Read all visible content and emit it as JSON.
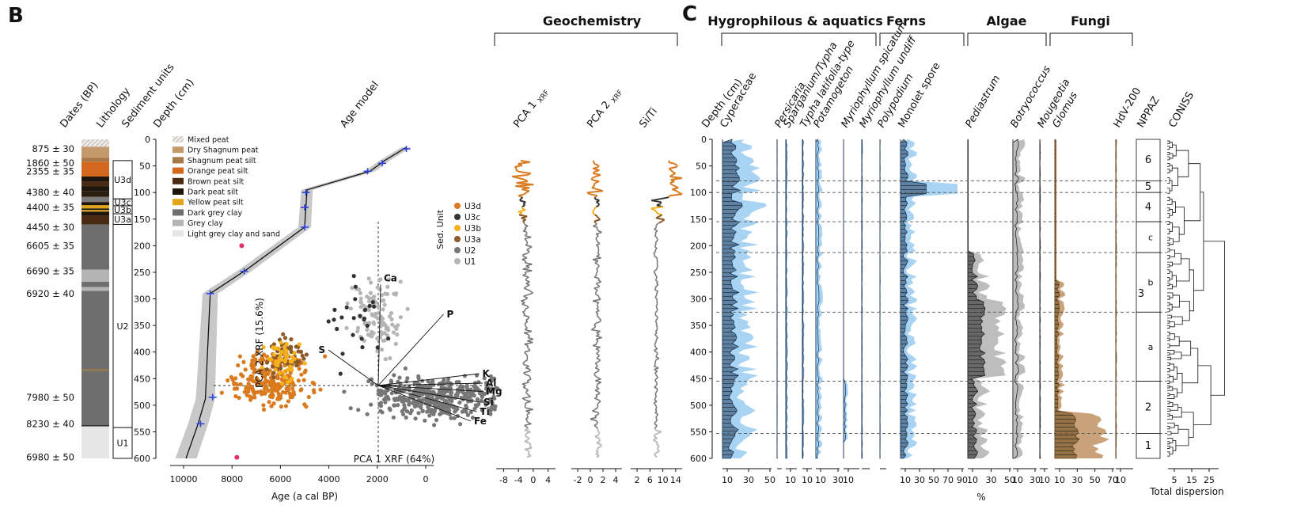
{
  "panel_b_letter": "B",
  "panel_c_letter": "C",
  "geochem_title": "Geochemistry",
  "column_headers": {
    "dates": "Dates (BP)",
    "lithology": "Lithology",
    "units": "Sediment units",
    "depth": "Depth (cm)",
    "age_model": "Age model",
    "pca1": "PCA 1",
    "pca2": "PCA 2",
    "xrf": "XRF",
    "siti": "Si/Ti",
    "depth_c": "Depth (cm)"
  },
  "dates": [
    {
      "label": "875 ± 30",
      "depth": 18,
      "grey": false
    },
    {
      "label": "1860 ± 50",
      "depth": 45,
      "grey": false
    },
    {
      "label": "2355 ± 35",
      "depth": 60,
      "grey": false
    },
    {
      "label": "4380 ± 40",
      "depth": 100,
      "grey": false
    },
    {
      "label": "4400 ± 35",
      "depth": 128,
      "grey": false
    },
    {
      "label": "4450 ± 30",
      "depth": 165,
      "grey": false
    },
    {
      "label": "6605 ± 35",
      "depth": 200,
      "grey": true
    },
    {
      "label": "6690 ± 35",
      "depth": 248,
      "grey": false
    },
    {
      "label": "6920 ± 40",
      "depth": 290,
      "grey": false
    },
    {
      "label": "7980 ± 50",
      "depth": 485,
      "grey": false
    },
    {
      "label": "8230 ± 40",
      "depth": 535,
      "grey": false
    },
    {
      "label": "6980 ± 50",
      "depth": 598,
      "grey": true
    }
  ],
  "units": [
    {
      "label": "U3d",
      "top": 40,
      "bottom": 112
    },
    {
      "label": "U3c",
      "top": 112,
      "bottom": 125
    },
    {
      "label": "U3b",
      "top": 125,
      "bottom": 140
    },
    {
      "label": "U3a",
      "top": 140,
      "bottom": 160
    },
    {
      "label": "U2",
      "top": 160,
      "bottom": 542
    },
    {
      "label": "U1",
      "top": 542,
      "bottom": 600
    }
  ],
  "litho_legend": [
    {
      "label": "Mixed peat",
      "color": "#e8e4e0",
      "hatch": true
    },
    {
      "label": "Dry Shagnum peat",
      "color": "#c49a6c"
    },
    {
      "label": "Shagnum peat silt",
      "color": "#a5784a"
    },
    {
      "label": "Orange peat silt",
      "color": "#d2691e"
    },
    {
      "label": "Brown peat silt",
      "color": "#4a2a12"
    },
    {
      "label": "Dark peat silt",
      "color": "#1e150d"
    },
    {
      "label": "Yellow peat silt",
      "color": "#e3a61a"
    },
    {
      "label": "Dark grey clay",
      "color": "#6e6e6e"
    },
    {
      "label": "Grey clay",
      "color": "#b4b4b4"
    },
    {
      "label": "Light grey clay and sand",
      "color": "#e6e6e6"
    }
  ],
  "litho_layers": [
    {
      "top": 0,
      "bottom": 14,
      "color": "#e8e4e0"
    },
    {
      "top": 14,
      "bottom": 35,
      "color": "#c49a6c"
    },
    {
      "top": 35,
      "bottom": 42,
      "color": "#a5784a"
    },
    {
      "top": 42,
      "bottom": 70,
      "color": "#d2691e"
    },
    {
      "top": 70,
      "bottom": 80,
      "color": "#1e150d"
    },
    {
      "top": 80,
      "bottom": 88,
      "color": "#4a2a12"
    },
    {
      "top": 88,
      "bottom": 98,
      "color": "#1e150d"
    },
    {
      "top": 98,
      "bottom": 108,
      "color": "#2b1d10"
    },
    {
      "top": 108,
      "bottom": 118,
      "color": "#7a7a7a"
    },
    {
      "top": 118,
      "bottom": 124,
      "color": "#1e150d"
    },
    {
      "top": 124,
      "bottom": 130,
      "color": "#e3a61a"
    },
    {
      "top": 130,
      "bottom": 133,
      "color": "#1e150d"
    },
    {
      "top": 133,
      "bottom": 136,
      "color": "#e3a61a"
    },
    {
      "top": 136,
      "bottom": 143,
      "color": "#1e150d"
    },
    {
      "top": 143,
      "bottom": 160,
      "color": "#4a2a12"
    },
    {
      "top": 160,
      "bottom": 245,
      "color": "#6e6e6e"
    },
    {
      "top": 245,
      "bottom": 268,
      "color": "#b4b4b4"
    },
    {
      "top": 268,
      "bottom": 278,
      "color": "#6e6e6e"
    },
    {
      "top": 278,
      "bottom": 285,
      "color": "#b4b4b4"
    },
    {
      "top": 285,
      "bottom": 432,
      "color": "#6e6e6e"
    },
    {
      "top": 432,
      "bottom": 436,
      "color": "#8b6f47"
    },
    {
      "top": 436,
      "bottom": 537,
      "color": "#6e6e6e"
    },
    {
      "top": 537,
      "bottom": 540,
      "color": "#333333"
    },
    {
      "top": 540,
      "bottom": 600,
      "color": "#e6e6e6"
    }
  ],
  "chart_data": [
    {
      "type": "line",
      "name": "age_model",
      "xlabel": "Age (a cal BP)",
      "ylabel": "Depth (cm)",
      "xlim": [
        10000,
        0
      ],
      "ylim": [
        600,
        0
      ],
      "x_ticks": [
        10000,
        8000,
        6000,
        4000,
        2000,
        0
      ],
      "y_ticks": [
        0,
        50,
        100,
        150,
        200,
        250,
        300,
        350,
        400,
        450,
        500,
        550,
        600
      ],
      "median": [
        [
          800,
          15
        ],
        [
          1700,
          40
        ],
        [
          2300,
          60
        ],
        [
          2450,
          62
        ],
        [
          4900,
          95
        ],
        [
          4950,
          128
        ],
        [
          5000,
          165
        ],
        [
          7400,
          245
        ],
        [
          8900,
          290
        ],
        [
          9100,
          488
        ],
        [
          9400,
          535
        ],
        [
          9900,
          600
        ]
      ],
      "dates_blue": [
        [
          800,
          18
        ],
        [
          1800,
          45
        ],
        [
          2400,
          60
        ],
        [
          4950,
          100
        ],
        [
          5000,
          128
        ],
        [
          5000,
          165
        ],
        [
          7500,
          248
        ],
        [
          8900,
          290
        ],
        [
          8800,
          485
        ],
        [
          9300,
          535
        ]
      ],
      "dates_rejected": [
        [
          7600,
          200
        ],
        [
          7800,
          598
        ]
      ]
    },
    {
      "type": "scatter",
      "name": "xrf_pca_biplot",
      "xlabel": "PCA 1",
      "xlabel_sub": "XRF",
      "xlabel_pct": "(64%)",
      "ylabel": "PCA 2",
      "ylabel_sub": "XRF",
      "ylabel_pct": "(15.6%)",
      "legend_title": "Sed. Unit",
      "series": [
        {
          "name": "U3d",
          "color": "#d97a1e"
        },
        {
          "name": "U3c",
          "color": "#333333"
        },
        {
          "name": "U3b",
          "color": "#f4b11c"
        },
        {
          "name": "U3a",
          "color": "#8b5a2b"
        },
        {
          "name": "U2",
          "color": "#777777"
        },
        {
          "name": "U1",
          "color": "#b5b5b5"
        }
      ],
      "loadings": [
        {
          "name": "Ca",
          "x": 0.02,
          "y": 0.85
        },
        {
          "name": "P",
          "x": 0.55,
          "y": 0.6
        },
        {
          "name": "S",
          "x": -0.42,
          "y": 0.3
        },
        {
          "name": "K",
          "x": 0.85,
          "y": 0.1
        },
        {
          "name": "Al",
          "x": 0.88,
          "y": 0.02
        },
        {
          "name": "Mg",
          "x": 0.88,
          "y": -0.05
        },
        {
          "name": "Si",
          "x": 0.86,
          "y": -0.14
        },
        {
          "name": "Ti",
          "x": 0.83,
          "y": -0.22
        },
        {
          "name": "Fe",
          "x": 0.78,
          "y": -0.3
        }
      ]
    },
    {
      "type": "line",
      "name": "geochemistry",
      "series": [
        {
          "name": "PCA 1 XRF",
          "ticks": [
            "-8",
            "-4",
            "0",
            "4"
          ],
          "xlim": [
            -9,
            6
          ]
        },
        {
          "name": "PCA 2 XRF",
          "ticks": [
            "-2",
            "0",
            "2",
            "4"
          ],
          "xlim": [
            -3,
            5
          ]
        },
        {
          "name": "Si/Ti",
          "ticks": [
            "2",
            "6",
            "10",
            "14"
          ],
          "xlim": [
            1,
            16
          ]
        }
      ]
    },
    {
      "type": "area",
      "name": "pollen_npp_diagram",
      "xlabel": "%",
      "groups": [
        {
          "label": "Hygrophilous & aquatics",
          "color": "#3a7cc6"
        },
        {
          "label": "Ferns",
          "color": "#3a7cc6"
        },
        {
          "label": "Algae",
          "color": "#777777"
        },
        {
          "label": "Fungi",
          "color": "#8b6a10"
        }
      ],
      "taxa": [
        {
          "name": "Cyperaceae",
          "italic": false,
          "ticks": [
            "10",
            "30",
            "50"
          ]
        },
        {
          "name": "Persicaria",
          "italic": true,
          "ticks": []
        },
        {
          "name": "Sparganium/Typha",
          "italic": true,
          "ticks": [
            "10"
          ]
        },
        {
          "name": "Typha latifolia-type",
          "italic": true,
          "ticks": [
            "10"
          ]
        },
        {
          "name": "Potamogeton",
          "italic": true,
          "ticks": [
            "10",
            "30"
          ]
        },
        {
          "name": "Myriophyllum spicatum",
          "italic": true,
          "ticks": [
            "10"
          ]
        },
        {
          "name": "Myriophyllum undiff",
          "italic": true,
          "ticks": []
        },
        {
          "name": "Polypodium",
          "italic": true,
          "ticks": []
        },
        {
          "name": "Monolet spore",
          "italic": false,
          "ticks": [
            "10",
            "30",
            "50",
            "70",
            "90"
          ]
        },
        {
          "name": "Pediastrum",
          "italic": true,
          "ticks": [
            "10",
            "30",
            "50"
          ]
        },
        {
          "name": "Botryococcus",
          "italic": true,
          "ticks": [
            "10",
            "30"
          ]
        },
        {
          "name": "Mougeotia",
          "italic": true,
          "ticks": [
            "10"
          ]
        },
        {
          "name": "Glomus",
          "italic": true,
          "ticks": [
            "10",
            "30",
            "50",
            "70"
          ]
        },
        {
          "name": "HdV-200",
          "italic": false,
          "ticks": [
            "10"
          ]
        }
      ],
      "zones_label": "NPPAZ",
      "zones": [
        "6",
        "5",
        "4",
        "c",
        "b",
        "a",
        "2",
        "1"
      ],
      "zone3": "3",
      "zone_boundaries": [
        78,
        100,
        155,
        213,
        325,
        455,
        553
      ],
      "coniss_label": "CONISS",
      "coniss_xlabel": "Total dispersion",
      "coniss_ticks": [
        "5",
        "15",
        "25"
      ]
    }
  ]
}
